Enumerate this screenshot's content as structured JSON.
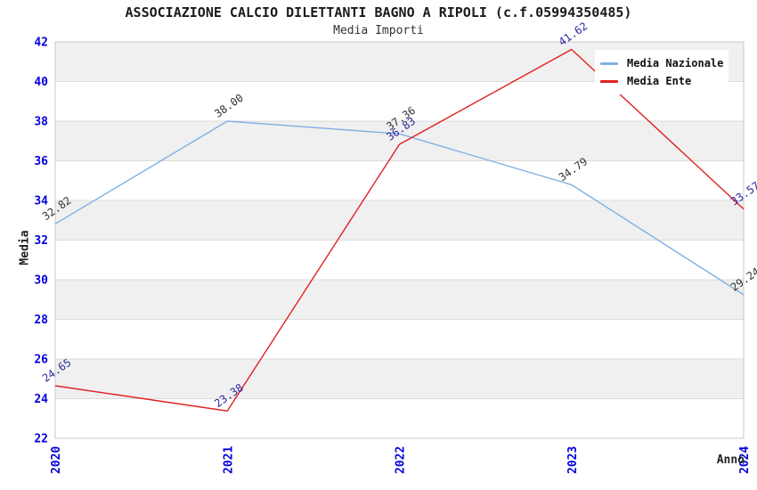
{
  "chart_data": {
    "type": "line",
    "title": "ASSOCIAZIONE CALCIO DILETTANTI BAGNO A RIPOLI (c.f.05994350485)",
    "subtitle": "Media Importi",
    "xlabel": "Anno",
    "ylabel": "Media",
    "x": [
      "2020",
      "2021",
      "2022",
      "2023",
      "2024"
    ],
    "ylim": [
      22,
      42
    ],
    "yticks": [
      22,
      24,
      26,
      28,
      30,
      32,
      34,
      36,
      38,
      40,
      42
    ],
    "grid": "horizontal-bands",
    "band_colors": [
      "#f0f0f0",
      "#ffffff"
    ],
    "gridline_color": "#dcdcdc",
    "plot_border_color": "#c8c8c8",
    "tick_label_color": "#0000dd",
    "legend_position": "top-right",
    "series": [
      {
        "name": "Media Nazionale",
        "color": "#7fb2e5",
        "label_color": "#333333",
        "values": [
          32.82,
          38.0,
          37.36,
          34.79,
          29.24
        ]
      },
      {
        "name": "Media Ente",
        "color": "#e02020",
        "label_color": "#2a2a9e",
        "values": [
          24.65,
          23.38,
          36.83,
          41.62,
          33.57
        ]
      }
    ]
  }
}
